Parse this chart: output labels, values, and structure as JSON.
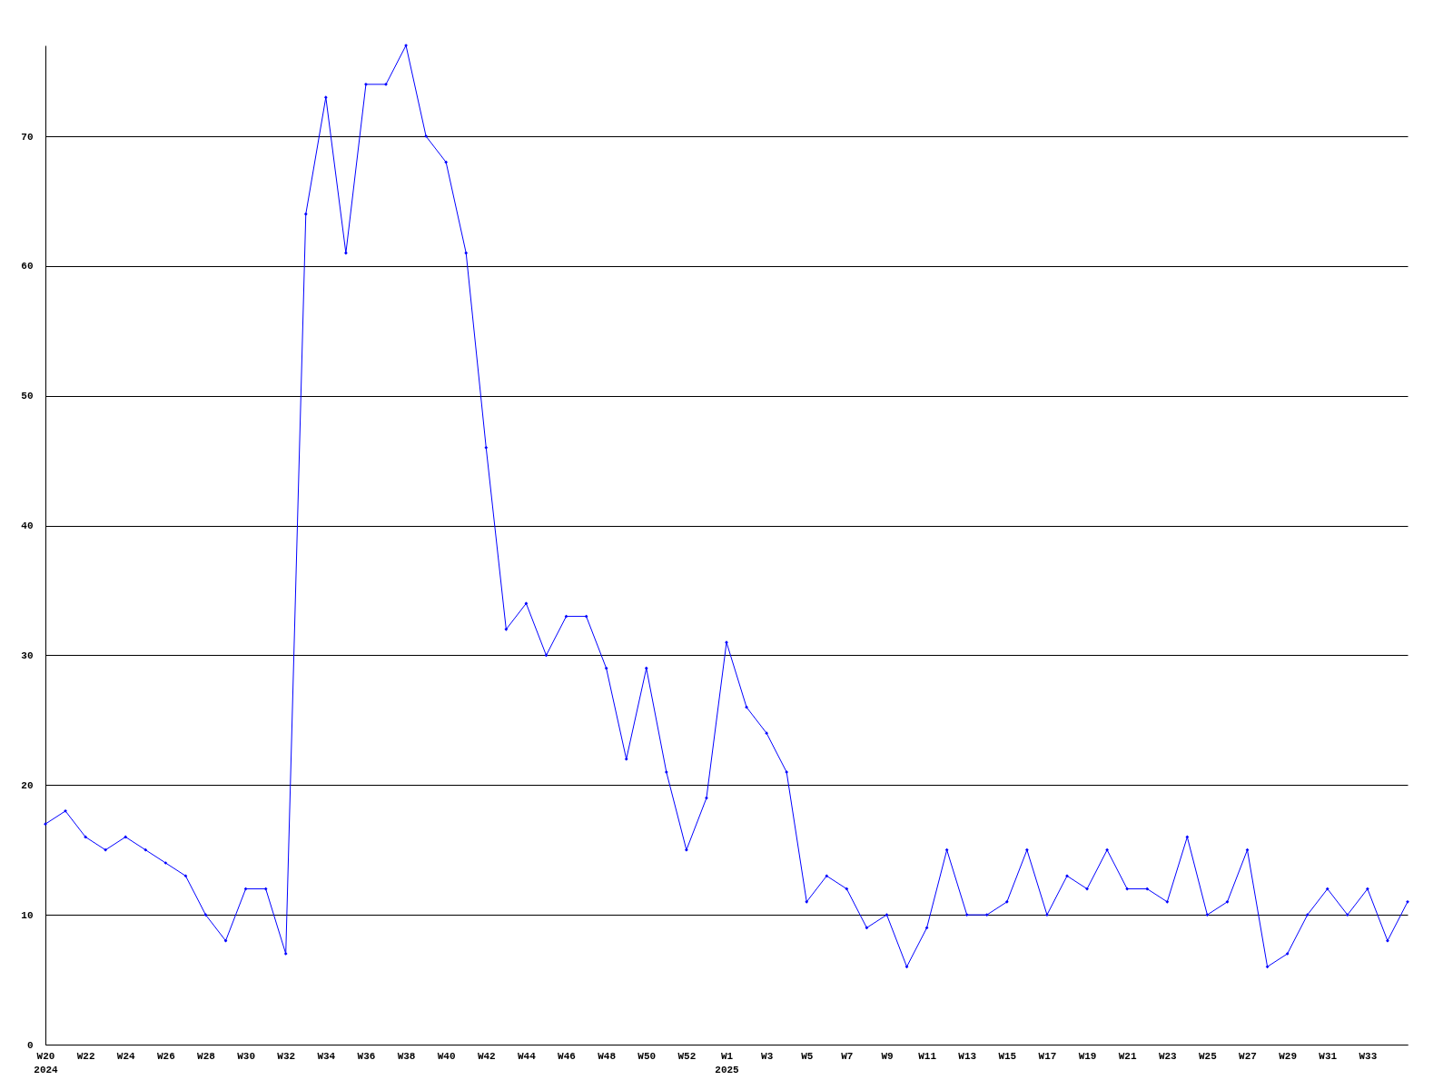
{
  "chart_data": {
    "type": "line",
    "categories": [
      "W20\n2024",
      null,
      "W22",
      null,
      "W24",
      null,
      "W26",
      null,
      "W28",
      null,
      "W30",
      null,
      "W32",
      null,
      "W34",
      null,
      "W36",
      null,
      "W38",
      null,
      "W40",
      null,
      "W42",
      null,
      "W44",
      null,
      "W46",
      null,
      "W48",
      null,
      "W50",
      null,
      "W52",
      null,
      "W1\n2025",
      null,
      "W3",
      null,
      "W5",
      null,
      "W7",
      null,
      "W9",
      null,
      "W11",
      null,
      "W13",
      null,
      "W15",
      null,
      "W17",
      null,
      "W19",
      null,
      "W21",
      null,
      "W23",
      null,
      "W25",
      null,
      "W27",
      null,
      "W29",
      null,
      "W31",
      null,
      "W33",
      null,
      null
    ],
    "series": [
      {
        "color": "#0000ff",
        "values": [
          17,
          18,
          16,
          15,
          16,
          15,
          14,
          13,
          10,
          8,
          12,
          12,
          7,
          64,
          73,
          61,
          74,
          74,
          77,
          70,
          68,
          61,
          46,
          32,
          34,
          30,
          33,
          33,
          29,
          22,
          29,
          21,
          15,
          19,
          31,
          26,
          24,
          21,
          11,
          13,
          12,
          9,
          10,
          6,
          9,
          15,
          10,
          10,
          11,
          15,
          10,
          13,
          12,
          15,
          12,
          12,
          11,
          16,
          10,
          11,
          15,
          6,
          7,
          10,
          12,
          10,
          12,
          8,
          11
        ]
      }
    ],
    "ylim": [
      0,
      77
    ],
    "yticks": [
      0,
      10,
      20,
      30,
      40,
      50,
      60,
      70
    ],
    "grid": "y",
    "marker": "diamond",
    "line_style": "solid"
  }
}
